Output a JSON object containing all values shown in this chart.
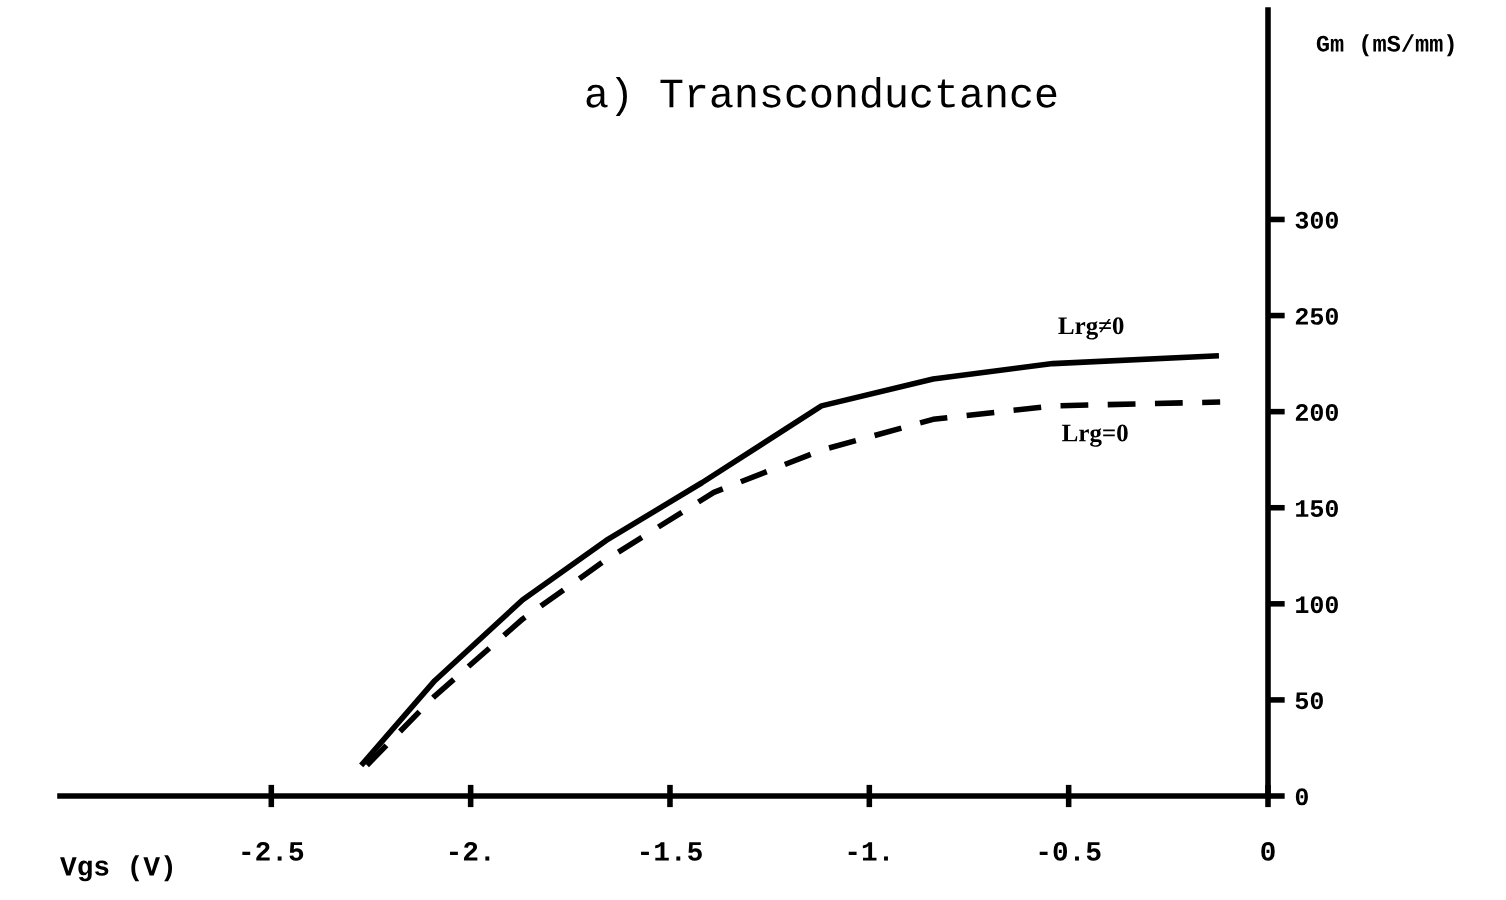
{
  "chart_data": {
    "type": "line",
    "title": "a) Transconductance",
    "xlabel": "Vgs (V)",
    "ylabel": "Gm (mS/mm)",
    "xlim": [
      -3.03,
      0
    ],
    "ylim": [
      0,
      409
    ],
    "xticks": [
      {
        "value": -2.5,
        "label": "-2.5"
      },
      {
        "value": -2,
        "label": "-2."
      },
      {
        "value": -1.5,
        "label": "-1.5"
      },
      {
        "value": -1,
        "label": "-1."
      },
      {
        "value": -0.5,
        "label": "-0.5"
      },
      0
    ],
    "yticks": [
      0,
      50,
      100,
      150,
      200,
      250,
      300
    ],
    "grid": false,
    "legend": false,
    "marker": "none",
    "series": [
      {
        "name": "Lrg≠0",
        "color": "#000000",
        "line_style": "solid",
        "x": [
          -2.27,
          -2.09,
          -1.87,
          -1.66,
          -1.42,
          -1.12,
          -0.84,
          -0.54,
          -0.13
        ],
        "values": [
          17,
          60,
          102,
          133,
          163,
          203,
          217,
          225,
          229
        ]
      },
      {
        "name": "Lrg=0",
        "color": "#000000",
        "line_style": "dashed",
        "x": [
          -2.26,
          -2.09,
          -1.87,
          -1.66,
          -1.39,
          -1.12,
          -0.84,
          -0.54,
          -0.12
        ],
        "values": [
          16,
          52,
          92,
          123,
          158,
          180,
          196,
          203,
          205
        ]
      }
    ]
  }
}
